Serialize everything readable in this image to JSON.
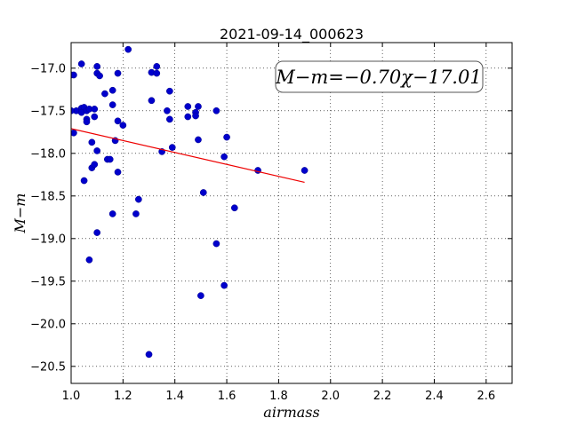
{
  "chart_data": {
    "type": "scatter",
    "title": "2021-09-14_000623",
    "xlabel": "airmass",
    "ylabel": "M−m",
    "xlim": [
      1.0,
      2.7
    ],
    "ylim": [
      -20.7,
      -16.7
    ],
    "y_inverted": true,
    "grid": true,
    "grid_style": "dotted",
    "x_ticks": [
      "1.0",
      "1.2",
      "1.4",
      "1.6",
      "1.8",
      "2.0",
      "2.2",
      "2.4",
      "2.6"
    ],
    "x_tick_values": [
      1.0,
      1.2,
      1.4,
      1.6,
      1.8,
      2.0,
      2.2,
      2.4,
      2.6
    ],
    "y_ticks": [
      "−17.0",
      "−17.5",
      "−18.0",
      "−18.5",
      "−19.0",
      "−19.5",
      "−20.0",
      "−20.5"
    ],
    "y_tick_values": [
      -17.0,
      -17.5,
      -18.0,
      -18.5,
      -19.0,
      -19.5,
      -20.0,
      -20.5
    ],
    "annotation": "M−m=−0.70χ−17.01",
    "annotation_placement": "top-right",
    "colors": {
      "points": "#0000cc",
      "fit_line": "#ee0000"
    },
    "series": [
      {
        "type": "scatter",
        "x": [
          1.0,
          1.01,
          1.02,
          1.0,
          1.01,
          1.04,
          1.04,
          1.05,
          1.04,
          1.06,
          1.06,
          1.06,
          1.07,
          1.09,
          1.08,
          1.09,
          1.1,
          1.1,
          1.11,
          1.1,
          1.13,
          1.14,
          1.15,
          1.16,
          1.16,
          1.17,
          1.18,
          1.18,
          1.18,
          1.2,
          1.16,
          1.22,
          1.25,
          1.26,
          1.31,
          1.31,
          1.33,
          1.33,
          1.35,
          1.37,
          1.38,
          1.38,
          1.39,
          1.45,
          1.45,
          1.48,
          1.49,
          1.48,
          1.49,
          1.51,
          1.56,
          1.56,
          1.59,
          1.6,
          1.63,
          1.72,
          1.9,
          1.05,
          1.08,
          1.09,
          1.1,
          1.07,
          1.3,
          1.5,
          1.59
        ],
        "y": [
          -17.08,
          -17.08,
          -17.5,
          -17.5,
          -17.76,
          -16.95,
          -17.47,
          -17.46,
          -17.52,
          -17.5,
          -17.6,
          -17.63,
          -17.48,
          -17.48,
          -17.87,
          -17.57,
          -16.98,
          -17.06,
          -17.09,
          -17.97,
          -17.3,
          -18.07,
          -18.07,
          -17.26,
          -17.43,
          -17.85,
          -17.06,
          -17.62,
          -18.22,
          -17.67,
          -18.71,
          -16.78,
          -18.71,
          -18.54,
          -17.05,
          -17.38,
          -16.98,
          -17.06,
          -17.98,
          -17.5,
          -17.27,
          -17.6,
          -17.93,
          -17.45,
          -17.57,
          -17.52,
          -17.45,
          -17.56,
          -17.84,
          -18.46,
          -17.5,
          -19.06,
          -19.55,
          -17.81,
          -18.64,
          -18.2,
          -18.2,
          -18.32,
          -18.17,
          -18.13,
          -18.93,
          -19.25,
          -20.36,
          -19.67,
          -18.04
        ]
      },
      {
        "type": "line",
        "x": [
          1.0,
          1.9
        ],
        "y": [
          -17.71,
          -18.34
        ]
      }
    ]
  }
}
